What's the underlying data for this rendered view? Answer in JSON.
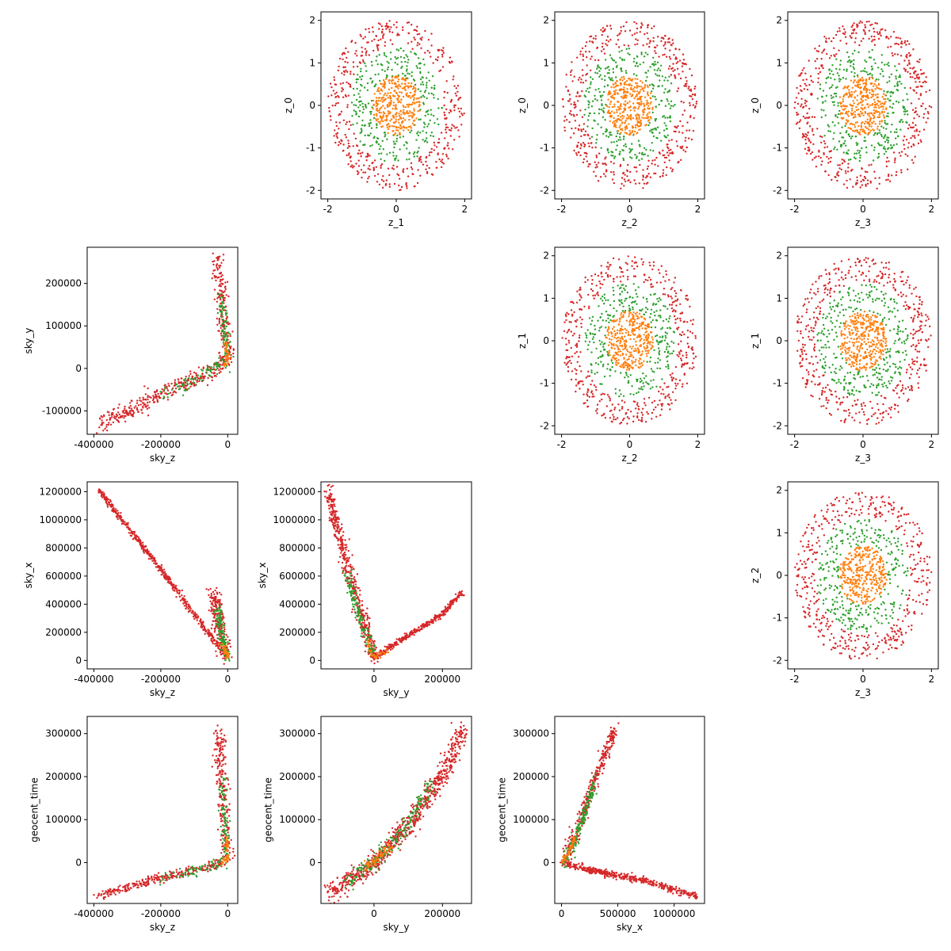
{
  "colors": {
    "red": "#d62728",
    "green": "#2ca02c",
    "orange": "#ff7f0e"
  },
  "chart_data": [
    {
      "type": "scatter",
      "kind": "latent",
      "xlabel": "z_1",
      "ylabel": "z_0",
      "xlim": [
        -2.2,
        2.2
      ],
      "ylim": [
        -2.2,
        2.2
      ],
      "xticks": [
        -2,
        0,
        2
      ],
      "yticks": [
        -2,
        -1,
        0,
        1,
        2
      ],
      "series": [
        {
          "color": "red",
          "radius_range": [
            1.4,
            2.0
          ],
          "count": 450
        },
        {
          "color": "green",
          "radius_range": [
            0.7,
            1.35
          ],
          "count": 300
        },
        {
          "color": "orange",
          "radius_range": [
            0,
            0.7
          ],
          "count": 350
        }
      ]
    },
    {
      "type": "scatter",
      "kind": "latent",
      "xlabel": "z_2",
      "ylabel": "z_0",
      "xlim": [
        -2.2,
        2.2
      ],
      "ylim": [
        -2.2,
        2.2
      ],
      "xticks": [
        -2,
        0,
        2
      ],
      "yticks": [
        -2,
        -1,
        0,
        1,
        2
      ],
      "series": [
        {
          "color": "red",
          "radius_range": [
            1.4,
            2.0
          ],
          "count": 450
        },
        {
          "color": "green",
          "radius_range": [
            0.7,
            1.35
          ],
          "count": 300
        },
        {
          "color": "orange",
          "radius_range": [
            0,
            0.7
          ],
          "count": 350
        }
      ]
    },
    {
      "type": "scatter",
      "kind": "latent",
      "xlabel": "z_3",
      "ylabel": "z_0",
      "xlim": [
        -2.2,
        2.2
      ],
      "ylim": [
        -2.2,
        2.2
      ],
      "xticks": [
        -2,
        0,
        2
      ],
      "yticks": [
        -2,
        -1,
        0,
        1,
        2
      ],
      "series": [
        {
          "color": "red",
          "radius_range": [
            1.4,
            2.0
          ],
          "count": 450
        },
        {
          "color": "green",
          "radius_range": [
            0.7,
            1.35
          ],
          "count": 300
        },
        {
          "color": "orange",
          "radius_range": [
            0,
            0.7
          ],
          "count": 350
        }
      ]
    },
    {
      "type": "scatter",
      "kind": "curve",
      "xlabel": "sky_z",
      "ylabel": "sky_y",
      "xlim": [
        -420000,
        30000
      ],
      "ylim": [
        -155000,
        285000
      ],
      "xticks": [
        -400000,
        -200000,
        0
      ],
      "yticks": [
        -100000,
        0,
        100000,
        200000
      ],
      "series": [
        {
          "color": "red",
          "noise": [
            9000,
            10000
          ],
          "count": 550,
          "points": [
            [
              -385000,
              -135000
            ],
            [
              -200000,
              -60000
            ],
            [
              -50000,
              -5000
            ],
            [
              0,
              20000
            ],
            [
              -10000,
              100000
            ],
            [
              -30000,
              260000
            ]
          ]
        },
        {
          "color": "green",
          "noise": [
            6000,
            8000
          ],
          "count": 150,
          "points": [
            [
              -200000,
              -65000
            ],
            [
              -50000,
              -5000
            ],
            [
              0,
              20000
            ],
            [
              -10000,
              100000
            ],
            [
              -20000,
              170000
            ]
          ]
        },
        {
          "color": "orange",
          "noise": [
            3000,
            5000
          ],
          "count": 40,
          "points": [
            [
              -20000,
              0
            ],
            [
              0,
              15000
            ],
            [
              -5000,
              60000
            ]
          ]
        }
      ]
    },
    {
      "type": "scatter",
      "kind": "latent",
      "xlabel": "z_2",
      "ylabel": "z_1",
      "xlim": [
        -2.2,
        2.2
      ],
      "ylim": [
        -2.2,
        2.2
      ],
      "xticks": [
        -2,
        0,
        2
      ],
      "yticks": [
        -2,
        -1,
        0,
        1,
        2
      ],
      "series": [
        {
          "color": "red",
          "radius_range": [
            1.4,
            2.0
          ],
          "count": 450
        },
        {
          "color": "green",
          "radius_range": [
            0.7,
            1.35
          ],
          "count": 300
        },
        {
          "color": "orange",
          "radius_range": [
            0,
            0.7
          ],
          "count": 350
        }
      ]
    },
    {
      "type": "scatter",
      "kind": "latent",
      "xlabel": "z_3",
      "ylabel": "z_1",
      "xlim": [
        -2.2,
        2.2
      ],
      "ylim": [
        -2.2,
        2.2
      ],
      "xticks": [
        -2,
        0,
        2
      ],
      "yticks": [
        -2,
        -1,
        0,
        1,
        2
      ],
      "series": [
        {
          "color": "red",
          "radius_range": [
            1.4,
            2.0
          ],
          "count": 450
        },
        {
          "color": "green",
          "radius_range": [
            0.7,
            1.35
          ],
          "count": 300
        },
        {
          "color": "orange",
          "radius_range": [
            0,
            0.7
          ],
          "count": 350
        }
      ]
    },
    {
      "type": "scatter",
      "kind": "curve",
      "xlabel": "sky_z",
      "ylabel": "sky_x",
      "xlim": [
        -420000,
        30000
      ],
      "ylim": [
        -60000,
        1270000
      ],
      "xticks": [
        -400000,
        -200000,
        0
      ],
      "yticks": [
        0,
        200000,
        400000,
        600000,
        800000,
        1000000,
        1200000
      ],
      "series": [
        {
          "color": "red",
          "noise": [
            3000,
            12000
          ],
          "count": 500,
          "points": [
            [
              -385000,
              1210000
            ],
            [
              -200000,
              650000
            ],
            [
              -60000,
              200000
            ],
            [
              0,
              20000
            ]
          ]
        },
        {
          "color": "red",
          "noise": [
            10000,
            25000
          ],
          "count": 220,
          "points": [
            [
              -40000,
              480000
            ],
            [
              -25000,
              250000
            ],
            [
              -5000,
              30000
            ]
          ]
        },
        {
          "color": "green",
          "noise": [
            5000,
            20000
          ],
          "count": 120,
          "points": [
            [
              -30000,
              380000
            ],
            [
              -15000,
              150000
            ],
            [
              0,
              20000
            ]
          ]
        },
        {
          "color": "orange",
          "noise": [
            4000,
            10000
          ],
          "count": 40,
          "points": [
            [
              -15000,
              120000
            ],
            [
              0,
              20000
            ]
          ]
        }
      ]
    },
    {
      "type": "scatter",
      "kind": "curve",
      "xlabel": "sky_y",
      "ylabel": "sky_x",
      "xlim": [
        -155000,
        285000
      ],
      "ylim": [
        -60000,
        1270000
      ],
      "xticks": [
        0,
        200000
      ],
      "yticks": [
        0,
        200000,
        400000,
        600000,
        800000,
        1000000,
        1200000
      ],
      "series": [
        {
          "color": "red",
          "noise": [
            8000,
            25000
          ],
          "count": 450,
          "points": [
            [
              -135000,
              1210000
            ],
            [
              -80000,
              700000
            ],
            [
              -40000,
              350000
            ],
            [
              0,
              20000
            ]
          ]
        },
        {
          "color": "red",
          "noise": [
            3000,
            10000
          ],
          "count": 350,
          "points": [
            [
              0,
              20000
            ],
            [
              100000,
              180000
            ],
            [
              200000,
              330000
            ],
            [
              260000,
              490000
            ]
          ]
        },
        {
          "color": "green",
          "noise": [
            6000,
            20000
          ],
          "count": 130,
          "points": [
            [
              -80000,
              620000
            ],
            [
              -40000,
              300000
            ],
            [
              0,
              30000
            ]
          ]
        },
        {
          "color": "orange",
          "noise": [
            4000,
            10000
          ],
          "count": 40,
          "points": [
            [
              -20000,
              150000
            ],
            [
              0,
              20000
            ],
            [
              40000,
              70000
            ]
          ]
        }
      ]
    },
    {
      "type": "scatter",
      "kind": "latent",
      "xlabel": "z_3",
      "ylabel": "z_2",
      "xlim": [
        -2.2,
        2.2
      ],
      "ylim": [
        -2.2,
        2.2
      ],
      "xticks": [
        -2,
        0,
        2
      ],
      "yticks": [
        -2,
        -1,
        0,
        1,
        2
      ],
      "series": [
        {
          "color": "red",
          "radius_range": [
            1.4,
            2.0
          ],
          "count": 450
        },
        {
          "color": "green",
          "radius_range": [
            0.7,
            1.35
          ],
          "count": 300
        },
        {
          "color": "orange",
          "radius_range": [
            0,
            0.7
          ],
          "count": 350
        }
      ]
    },
    {
      "type": "scatter",
      "kind": "curve",
      "xlabel": "sky_z",
      "ylabel": "geocent_time",
      "xlim": [
        -420000,
        30000
      ],
      "ylim": [
        -95000,
        340000
      ],
      "xticks": [
        -400000,
        -200000,
        0
      ],
      "yticks": [
        0,
        100000,
        200000,
        300000
      ],
      "series": [
        {
          "color": "red",
          "noise": [
            9000,
            5000
          ],
          "count": 550,
          "points": [
            [
              -385000,
              -78000
            ],
            [
              -200000,
              -35000
            ],
            [
              -50000,
              -8000
            ],
            [
              0,
              10000
            ],
            [
              -10000,
              100000
            ],
            [
              -25000,
              310000
            ]
          ]
        },
        {
          "color": "green",
          "noise": [
            6000,
            7000
          ],
          "count": 150,
          "points": [
            [
              -200000,
              -38000
            ],
            [
              -50000,
              -8000
            ],
            [
              0,
              10000
            ],
            [
              -10000,
              100000
            ],
            [
              -15000,
              200000
            ]
          ]
        },
        {
          "color": "orange",
          "noise": [
            3000,
            4000
          ],
          "count": 40,
          "points": [
            [
              -20000,
              -2000
            ],
            [
              0,
              10000
            ],
            [
              -5000,
              60000
            ]
          ]
        }
      ]
    },
    {
      "type": "scatter",
      "kind": "curve",
      "xlabel": "sky_y",
      "ylabel": "geocent_time",
      "xlim": [
        -155000,
        285000
      ],
      "ylim": [
        -95000,
        340000
      ],
      "xticks": [
        0,
        200000
      ],
      "yticks": [
        0,
        100000,
        200000,
        300000
      ],
      "series": [
        {
          "color": "red",
          "noise": [
            10000,
            12000
          ],
          "count": 750,
          "points": [
            [
              -130000,
              -70000
            ],
            [
              -50000,
              -30000
            ],
            [
              0,
              0
            ],
            [
              100000,
              90000
            ],
            [
              200000,
              200000
            ],
            [
              260000,
              310000
            ]
          ]
        },
        {
          "color": "green",
          "noise": [
            8000,
            10000
          ],
          "count": 200,
          "points": [
            [
              -80000,
              -45000
            ],
            [
              0,
              0
            ],
            [
              100000,
              90000
            ],
            [
              170000,
              190000
            ]
          ]
        },
        {
          "color": "orange",
          "noise": [
            5000,
            6000
          ],
          "count": 60,
          "points": [
            [
              -30000,
              -10000
            ],
            [
              0,
              5000
            ],
            [
              50000,
              40000
            ]
          ]
        }
      ]
    },
    {
      "type": "scatter",
      "kind": "curve",
      "xlabel": "sky_x",
      "ylabel": "geocent_time",
      "xlim": [
        -60000,
        1270000
      ],
      "ylim": [
        -95000,
        340000
      ],
      "xticks": [
        0,
        500000,
        1000000
      ],
      "yticks": [
        0,
        100000,
        200000,
        300000
      ],
      "series": [
        {
          "color": "red",
          "noise": [
            8000,
            4000
          ],
          "count": 450,
          "points": [
            [
              0,
              0
            ],
            [
              300000,
              -20000
            ],
            [
              700000,
              -40000
            ],
            [
              1200000,
              -78000
            ]
          ]
        },
        {
          "color": "red",
          "noise": [
            15000,
            12000
          ],
          "count": 350,
          "points": [
            [
              20000,
              0
            ],
            [
              150000,
              80000
            ],
            [
              300000,
              200000
            ],
            [
              480000,
              310000
            ]
          ]
        },
        {
          "color": "green",
          "noise": [
            10000,
            10000
          ],
          "count": 150,
          "points": [
            [
              20000,
              0
            ],
            [
              150000,
              70000
            ],
            [
              300000,
              190000
            ]
          ]
        },
        {
          "color": "orange",
          "noise": [
            6000,
            5000
          ],
          "count": 50,
          "points": [
            [
              0,
              0
            ],
            [
              60000,
              20000
            ],
            [
              120000,
              60000
            ]
          ]
        }
      ]
    }
  ]
}
